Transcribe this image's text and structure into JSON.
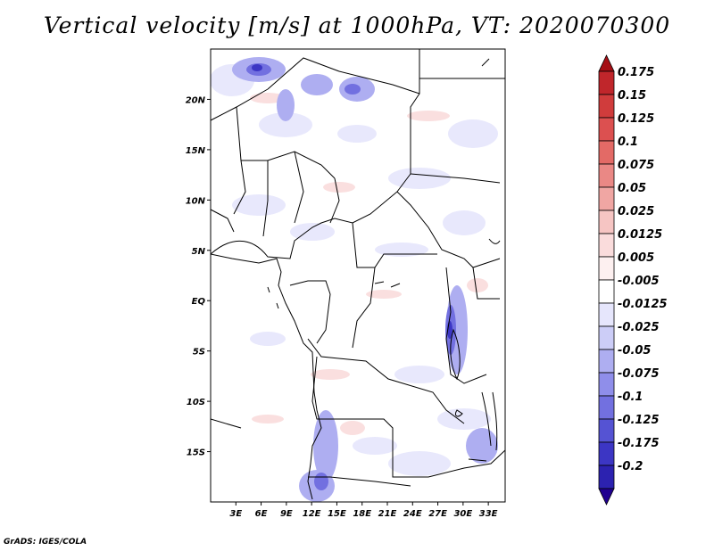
{
  "title": "Vertical velocity [m/s] at 1000hPa, VT: 2020070300",
  "credit": "GrADS: IGES/COLA",
  "map": {
    "lon_range": [
      0,
      35
    ],
    "lat_range": [
      -20,
      25
    ],
    "y_ticks": [
      {
        "lat": 20,
        "label": "20N"
      },
      {
        "lat": 15,
        "label": "15N"
      },
      {
        "lat": 10,
        "label": "10N"
      },
      {
        "lat": 5,
        "label": "5N"
      },
      {
        "lat": 0,
        "label": "EQ"
      },
      {
        "lat": -5,
        "label": "5S"
      },
      {
        "lat": -10,
        "label": "10S"
      },
      {
        "lat": -15,
        "label": "15S"
      }
    ],
    "x_ticks": [
      {
        "lon": 3,
        "label": "3E"
      },
      {
        "lon": 6,
        "label": "6E"
      },
      {
        "lon": 9,
        "label": "9E"
      },
      {
        "lon": 12,
        "label": "12E"
      },
      {
        "lon": 15,
        "label": "15E"
      },
      {
        "lon": 18,
        "label": "18E"
      },
      {
        "lon": 21,
        "label": "21E"
      },
      {
        "lon": 24,
        "label": "24E"
      },
      {
        "lon": 27,
        "label": "27E"
      },
      {
        "lon": 30,
        "label": "30E"
      },
      {
        "lon": 33,
        "label": "33E"
      }
    ]
  },
  "colorbar": {
    "top_color": "#a50f15",
    "bottom_color": "#200090",
    "levels": [
      {
        "label": "0.175",
        "color": "#c0262b"
      },
      {
        "label": "0.15",
        "color": "#d03c3c"
      },
      {
        "label": "0.125",
        "color": "#dc5050"
      },
      {
        "label": "0.1",
        "color": "#e36a66"
      },
      {
        "label": "0.075",
        "color": "#ea8885"
      },
      {
        "label": "0.05",
        "color": "#f0a6a3"
      },
      {
        "label": "0.025",
        "color": "#f6c5c3"
      },
      {
        "label": "0.0125",
        "color": "#fadcdc"
      },
      {
        "label": "0.005",
        "color": "#fdf0f0"
      },
      {
        "label": "-0.005",
        "color": "#ffffff"
      },
      {
        "label": "-0.0125",
        "color": "#e6e6fc"
      },
      {
        "label": "-0.025",
        "color": "#cccdf7"
      },
      {
        "label": "-0.05",
        "color": "#aeaef1"
      },
      {
        "label": "-0.075",
        "color": "#8f8eea"
      },
      {
        "label": "-0.1",
        "color": "#7270e0"
      },
      {
        "label": "-0.125",
        "color": "#5553d3"
      },
      {
        "label": "-0.175",
        "color": "#3c36c4"
      },
      {
        "label": "-0.2",
        "color": "#2c22b0"
      }
    ]
  }
}
